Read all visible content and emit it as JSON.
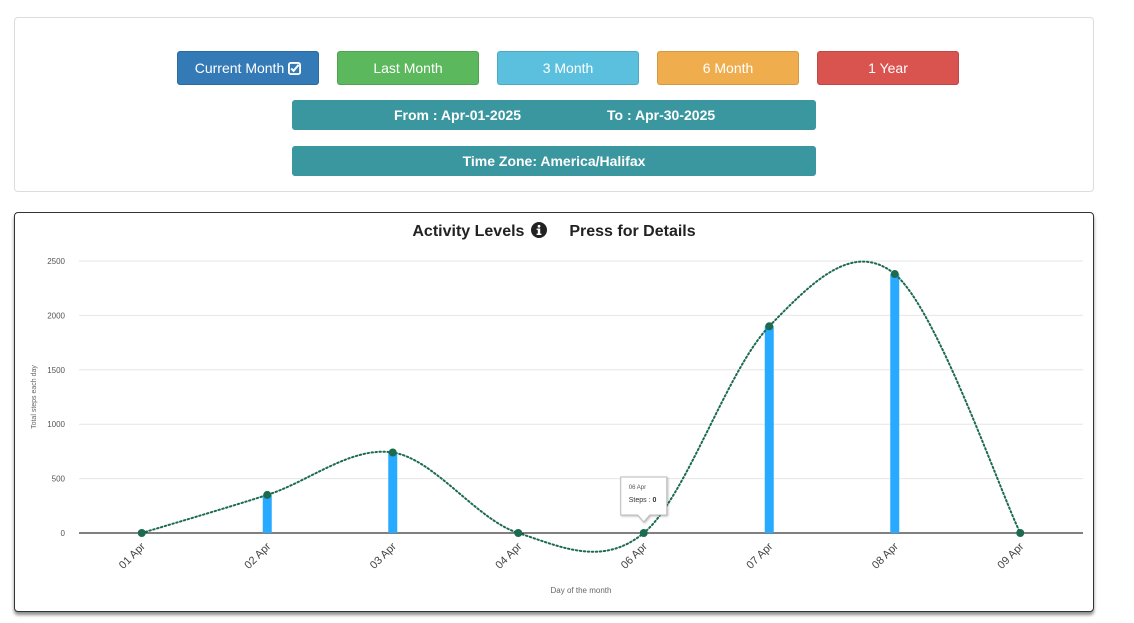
{
  "filters": {
    "buttons": [
      {
        "label": "Current Month",
        "color": "#337ab7",
        "active": true,
        "icon": "check-square-icon"
      },
      {
        "label": "Last Month",
        "color": "#5cb85c"
      },
      {
        "label": "3 Month",
        "color": "#5bc0de"
      },
      {
        "label": "6 Month",
        "color": "#f0ad4e"
      },
      {
        "label": "1 Year",
        "color": "#d9534f"
      }
    ],
    "from": "From : Apr-01-2025",
    "to": "To : Apr-30-2025",
    "timezone": "Time Zone: America/Halifax",
    "bar_color": "#3a969f"
  },
  "chart_header": {
    "title": "Activity Levels",
    "info_icon": "info-circle-icon",
    "details": "Press for Details"
  },
  "chart_data": {
    "type": "bar",
    "title": "Activity Levels",
    "xlabel": "Day of the month",
    "ylabel": "Total steps each day",
    "categories": [
      "01 Apr",
      "02 Apr",
      "03 Apr",
      "04 Apr",
      "06 Apr",
      "07 Apr",
      "08 Apr",
      "09 Apr"
    ],
    "values": [
      0,
      350,
      740,
      0,
      0,
      1900,
      2380,
      0
    ],
    "ylim": [
      0,
      2500
    ],
    "yticks": [
      0,
      500,
      1000,
      1500,
      2000,
      2500
    ],
    "grid": true,
    "bar_color": "#27aaff",
    "line_color": "#1d6b4f",
    "overlay": "dotted smooth line with markers",
    "tooltip": {
      "category": "06 Apr",
      "label": "Steps : ",
      "value": "0"
    }
  }
}
